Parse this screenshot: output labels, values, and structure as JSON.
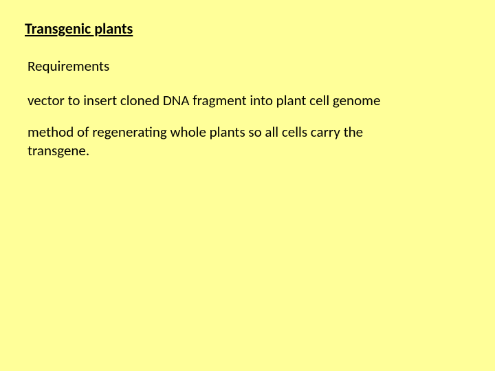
{
  "slide": {
    "background_color": "#ffff99",
    "text_color": "#000000",
    "font_family": "Calibri, sans-serif",
    "title": {
      "text": "Transgenic plants",
      "fontsize": 22,
      "underline": true
    },
    "subtitle": {
      "text": "Requirements",
      "fontsize": 21
    },
    "paragraphs": [
      "vector to insert cloned DNA fragment into plant cell genome",
      "method of regenerating whole plants so all cells carry the transgene."
    ],
    "body_fontsize": 21
  }
}
